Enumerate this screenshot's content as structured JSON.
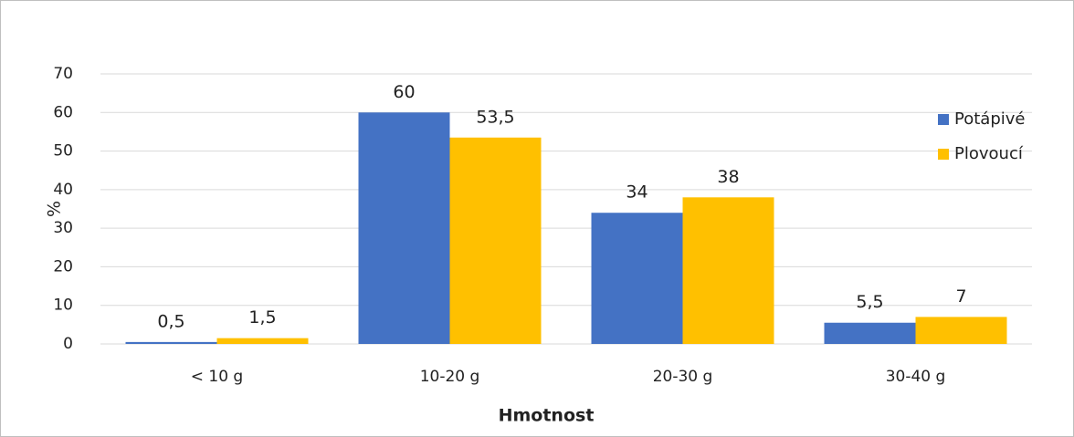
{
  "chart_data": {
    "type": "bar",
    "x_label": "Hmotnost",
    "y_label": "%",
    "categories": [
      "< 10 g",
      "10-20 g",
      "20-30 g",
      "30-40 g"
    ],
    "series": [
      {
        "name": "Potápivé",
        "color": "#4472c4",
        "values": [
          0.5,
          60,
          34,
          5.5
        ],
        "value_labels": [
          "0,5",
          "60",
          "34",
          "5,5"
        ]
      },
      {
        "name": "Plovoucí",
        "color": "#ffc000",
        "values": [
          1.5,
          53.5,
          38,
          7
        ],
        "value_labels": [
          "1,5",
          "53,5",
          "38",
          "7"
        ]
      }
    ],
    "ylim": [
      0,
      70
    ],
    "yticks": [
      0,
      10,
      20,
      30,
      40,
      50,
      60,
      70
    ],
    "grid": true,
    "legend": "right"
  }
}
